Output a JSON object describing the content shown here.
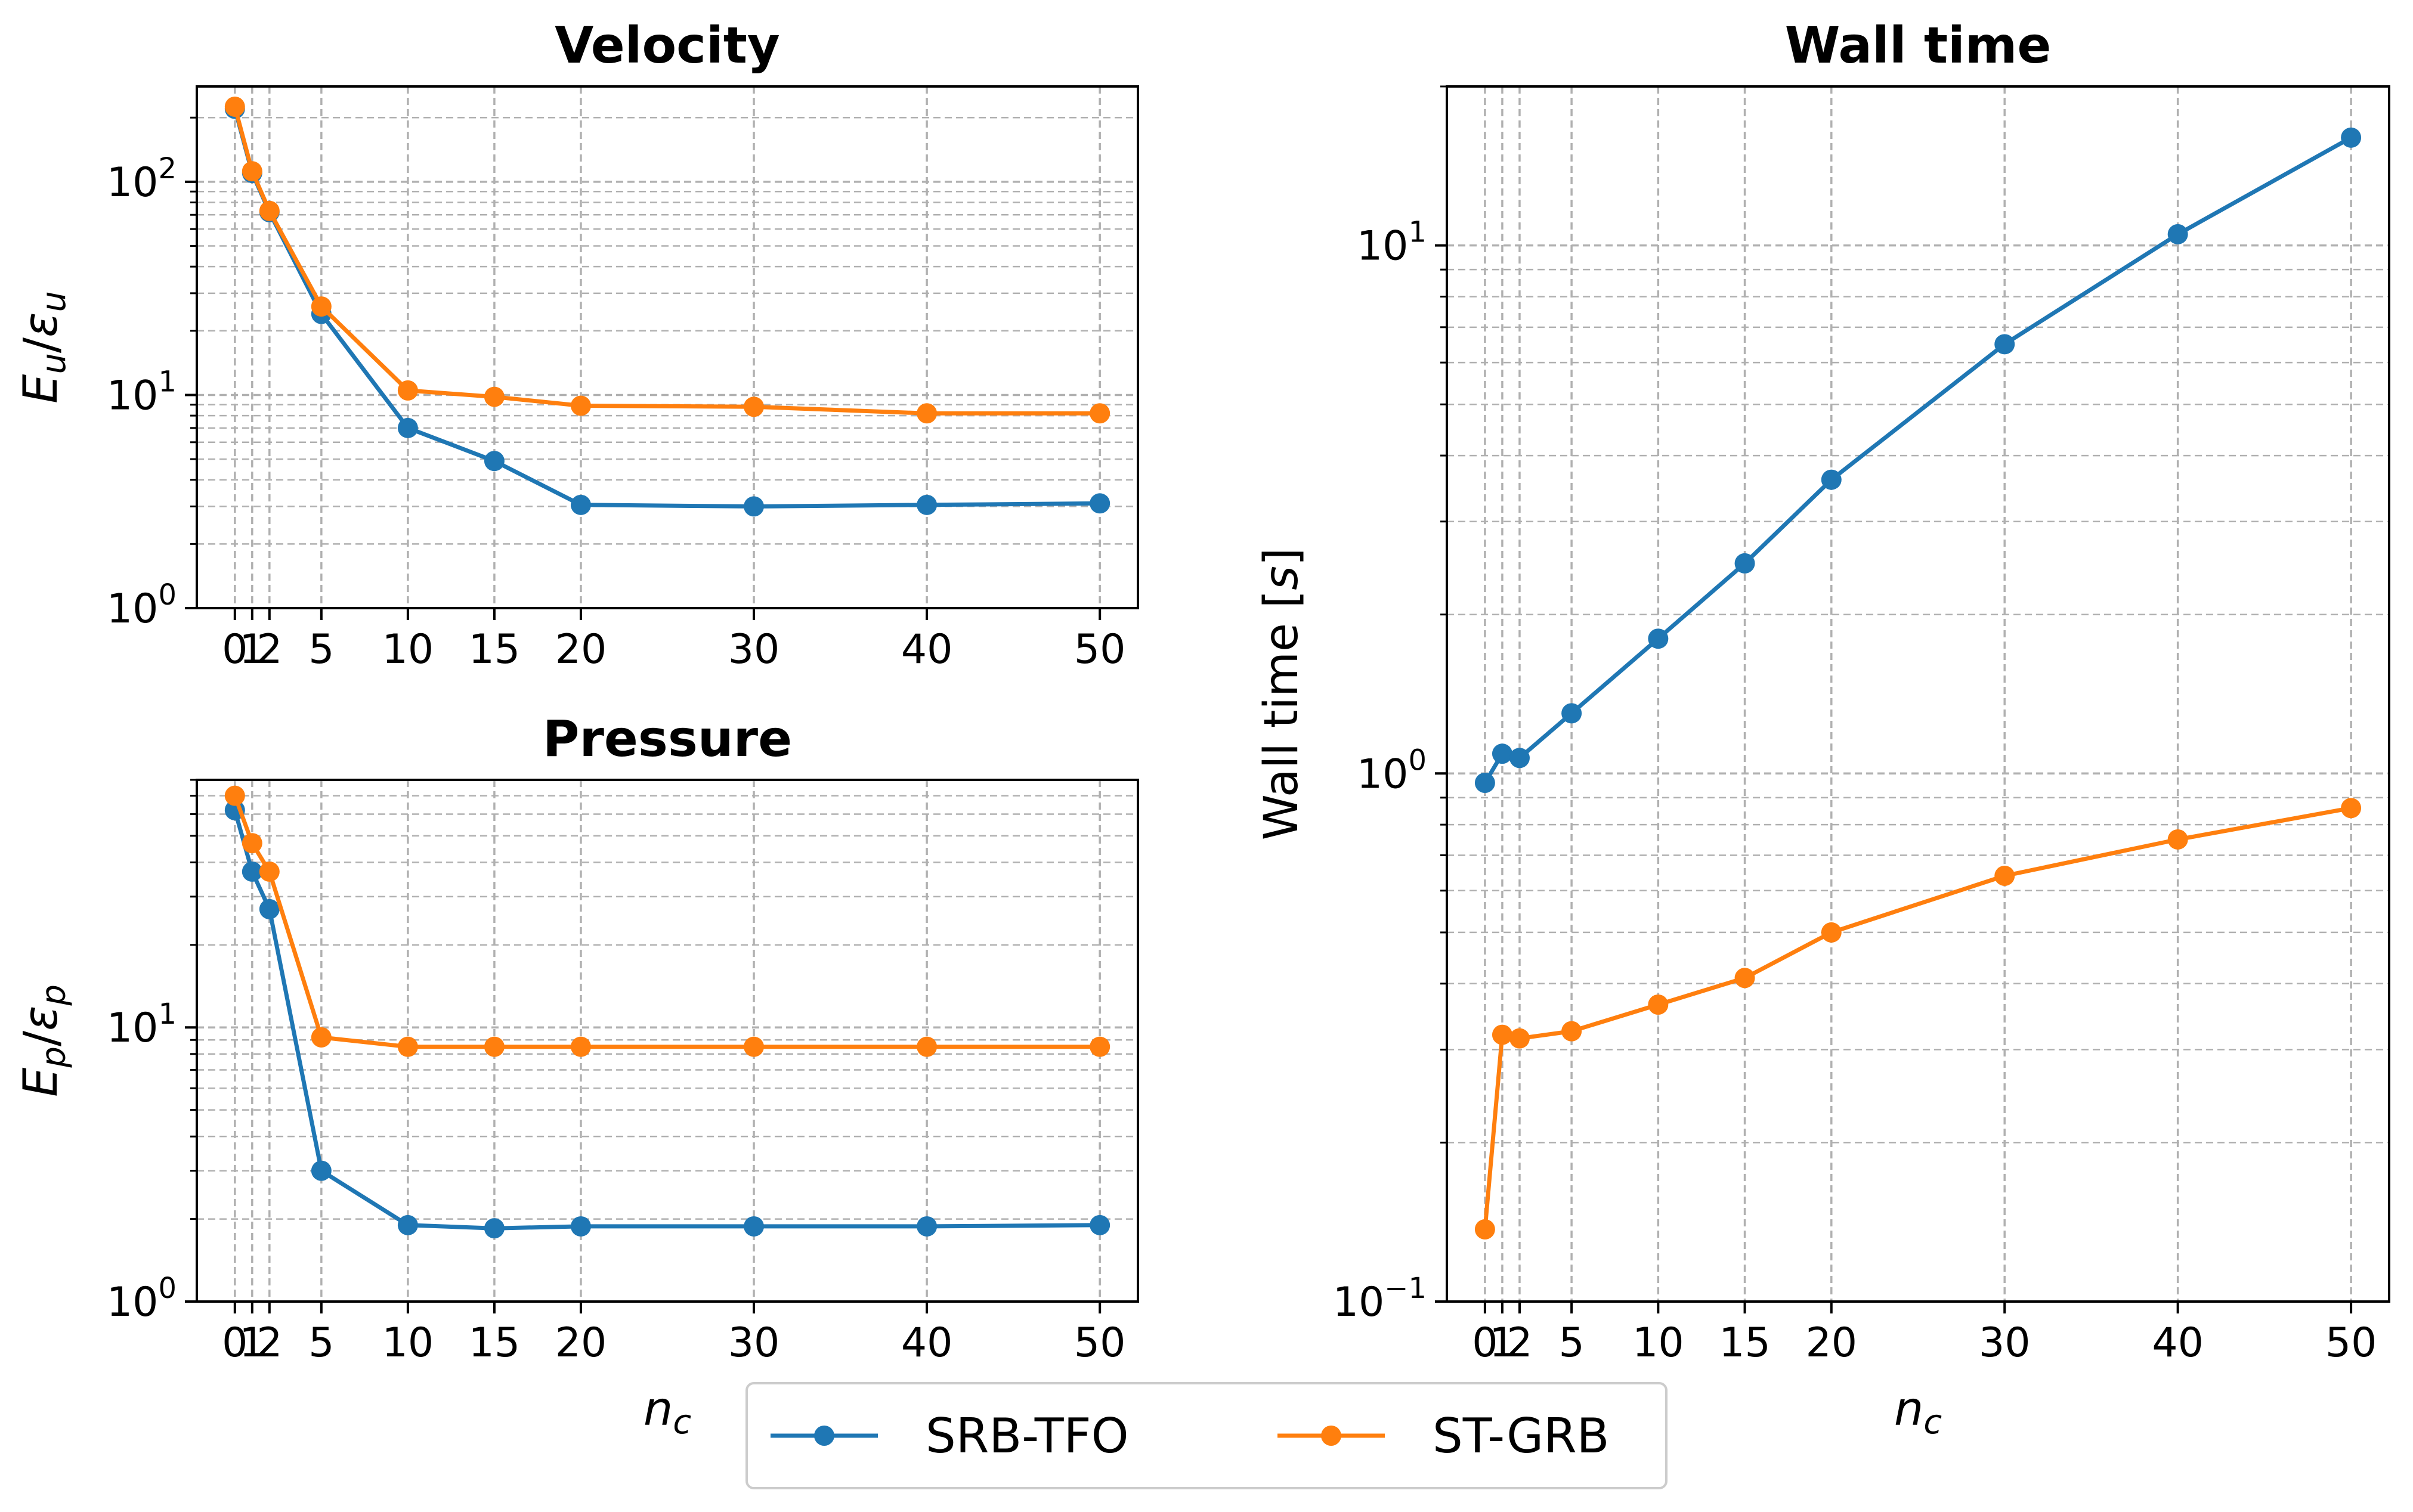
{
  "chart_data": [
    {
      "id": "velocity",
      "type": "line",
      "title": "Velocity",
      "ylabel": "E_u/ε_u",
      "ylabel_parts": {
        "base": "E",
        "sub": "u",
        "sep": "/",
        "base2": "ε",
        "sub2": "u"
      },
      "xlabel": "",
      "yscale": "log",
      "ylim": [
        1,
        280
      ],
      "xlim": [
        -2.2,
        52.2
      ],
      "x_ticks": [
        0,
        1,
        2,
        5,
        10,
        15,
        20,
        30,
        40,
        50
      ],
      "x_tick_labels": [
        "0",
        "1",
        "2",
        "5",
        "10",
        "15",
        "20",
        "30",
        "40",
        "50"
      ],
      "y_major_ticks": [
        1,
        10,
        100
      ],
      "y_tick_labels": [
        {
          "base": "10",
          "exp": "0"
        },
        {
          "base": "10",
          "exp": "1"
        },
        {
          "base": "10",
          "exp": "2"
        }
      ],
      "grid": true,
      "x": [
        0,
        1,
        2,
        5,
        10,
        15,
        20,
        30,
        40,
        50
      ],
      "series": [
        {
          "name": "SRB-TFO",
          "values": [
            220,
            110,
            72,
            24,
            7.0,
            4.9,
            3.05,
            3.0,
            3.05,
            3.1
          ]
        },
        {
          "name": "ST-GRB",
          "values": [
            225,
            112,
            73,
            26,
            10.5,
            9.8,
            8.9,
            8.8,
            8.2,
            8.2
          ]
        }
      ]
    },
    {
      "id": "pressure",
      "type": "line",
      "title": "Pressure",
      "ylabel": "E_p/ε_p",
      "ylabel_parts": {
        "base": "E",
        "sub": "p",
        "sep": "/",
        "base2": "ε",
        "sub2": "p"
      },
      "xlabel": "n_c",
      "xlabel_parts": {
        "base": "n",
        "sub": "c"
      },
      "yscale": "log",
      "ylim": [
        1,
        80
      ],
      "xlim": [
        -2.2,
        52.2
      ],
      "x_ticks": [
        0,
        1,
        2,
        5,
        10,
        15,
        20,
        30,
        40,
        50
      ],
      "x_tick_labels": [
        "0",
        "1",
        "2",
        "5",
        "10",
        "15",
        "20",
        "30",
        "40",
        "50"
      ],
      "y_major_ticks": [
        1,
        10
      ],
      "y_tick_labels": [
        {
          "base": "10",
          "exp": "0"
        },
        {
          "base": "10",
          "exp": "1"
        }
      ],
      "grid": true,
      "x": [
        0,
        1,
        2,
        5,
        10,
        15,
        20,
        30,
        40,
        50
      ],
      "series": [
        {
          "name": "SRB-TFO",
          "values": [
            62,
            37,
            27,
            3.0,
            1.9,
            1.85,
            1.88,
            1.88,
            1.88,
            1.9
          ]
        },
        {
          "name": "ST-GRB",
          "values": [
            70,
            47,
            37,
            9.2,
            8.5,
            8.5,
            8.5,
            8.5,
            8.5,
            8.5
          ]
        }
      ]
    },
    {
      "id": "walltime",
      "type": "line",
      "title": "Wall time",
      "ylabel": "Wall time [s]",
      "ylabel_parts": {
        "base": "Wall time [",
        "italic": "s",
        "end": "]"
      },
      "xlabel": "n_c",
      "xlabel_parts": {
        "base": "n",
        "sub": "c"
      },
      "yscale": "log",
      "ylim": [
        0.1,
        20
      ],
      "xlim": [
        -2.2,
        52.2
      ],
      "x_ticks": [
        0,
        1,
        2,
        5,
        10,
        15,
        20,
        30,
        40,
        50
      ],
      "x_tick_labels": [
        "0",
        "1",
        "2",
        "5",
        "10",
        "15",
        "20",
        "30",
        "40",
        "50"
      ],
      "y_major_ticks": [
        0.1,
        1,
        10
      ],
      "y_tick_labels": [
        {
          "base": "10",
          "exp": "−1"
        },
        {
          "base": "10",
          "exp": "0"
        },
        {
          "base": "10",
          "exp": "1"
        }
      ],
      "grid": true,
      "x": [
        0,
        1,
        2,
        5,
        10,
        15,
        20,
        30,
        40,
        50
      ],
      "series": [
        {
          "name": "SRB-TFO",
          "values": [
            0.96,
            1.09,
            1.07,
            1.3,
            1.8,
            2.5,
            3.6,
            6.5,
            10.5,
            16.0
          ]
        },
        {
          "name": "ST-GRB",
          "values": [
            0.137,
            0.32,
            0.315,
            0.325,
            0.365,
            0.41,
            0.5,
            0.64,
            0.75,
            0.86
          ]
        }
      ]
    }
  ],
  "legend": {
    "placement": "bottom-center",
    "entries": [
      {
        "name": "SRB-TFO",
        "color": "#1f77b4"
      },
      {
        "name": "ST-GRB",
        "color": "#ff7f0e"
      }
    ]
  },
  "colors": {
    "SRB-TFO": "#1f77b4",
    "ST-GRB": "#ff7f0e",
    "grid": "#b0b0b0"
  }
}
